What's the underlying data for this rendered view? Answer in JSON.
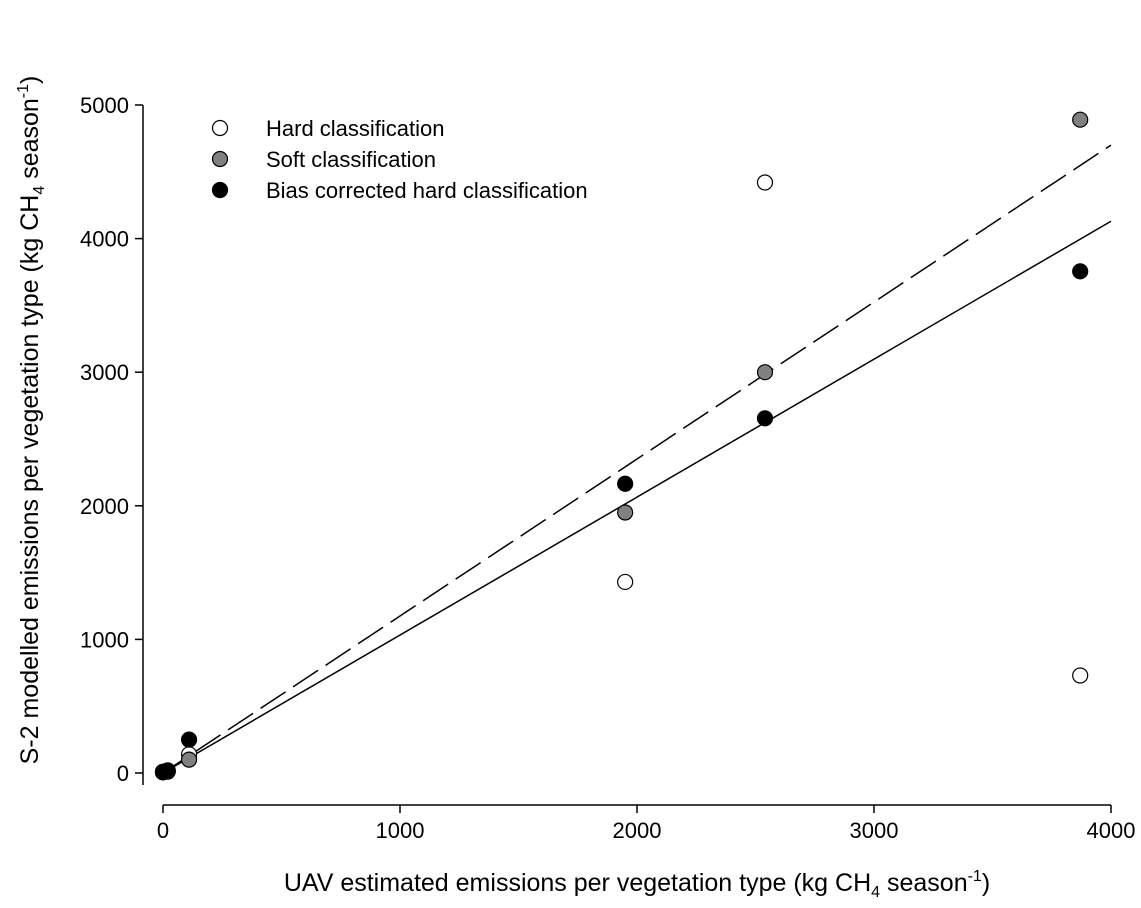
{
  "chart_data": {
    "type": "scatter",
    "title": "",
    "xlabel": {
      "main": "UAV estimated emissions per vegetation type (kg CH",
      "sub": "4",
      "mid": " season",
      "sup": "-1",
      "end": ")"
    },
    "ylabel": {
      "main": "S-2 modelled emissions per vegetation type (kg CH",
      "sub": "4",
      "mid": " season",
      "sup": "-1",
      "end": ")"
    },
    "xlim": [
      0,
      4000
    ],
    "ylim": [
      0,
      5000
    ],
    "xticks": [
      "0",
      "1000",
      "2000",
      "3000",
      "4000"
    ],
    "yticks": [
      "0",
      "1000",
      "2000",
      "3000",
      "4000",
      "5000"
    ],
    "grid": false,
    "legend_position": "top-left",
    "series": [
      {
        "name": "Hard classification",
        "marker": "circle",
        "fill": "#ffffff",
        "stroke": "#000000",
        "points": [
          [
            0,
            5
          ],
          [
            20,
            15
          ],
          [
            110,
            140
          ],
          [
            1950,
            1430
          ],
          [
            2540,
            4420
          ],
          [
            3870,
            730
          ]
        ]
      },
      {
        "name": "Soft classification",
        "marker": "circle",
        "fill": "#808080",
        "stroke": "#000000",
        "points": [
          [
            0,
            5
          ],
          [
            20,
            10
          ],
          [
            110,
            100
          ],
          [
            1950,
            1950
          ],
          [
            2540,
            3000
          ],
          [
            3870,
            4890
          ]
        ]
      },
      {
        "name": "Bias corrected hard classification",
        "marker": "circle",
        "fill": "#000000",
        "stroke": "#000000",
        "points": [
          [
            0,
            10
          ],
          [
            20,
            20
          ],
          [
            110,
            250
          ],
          [
            1950,
            2165
          ],
          [
            2540,
            2655
          ],
          [
            3870,
            3755
          ]
        ]
      }
    ],
    "fit_lines": [
      {
        "style": "dashed",
        "x": [
          0,
          4000
        ],
        "y": [
          0,
          4700
        ]
      },
      {
        "style": "solid",
        "x": [
          0,
          4000
        ],
        "y": [
          0,
          4130
        ]
      }
    ]
  }
}
